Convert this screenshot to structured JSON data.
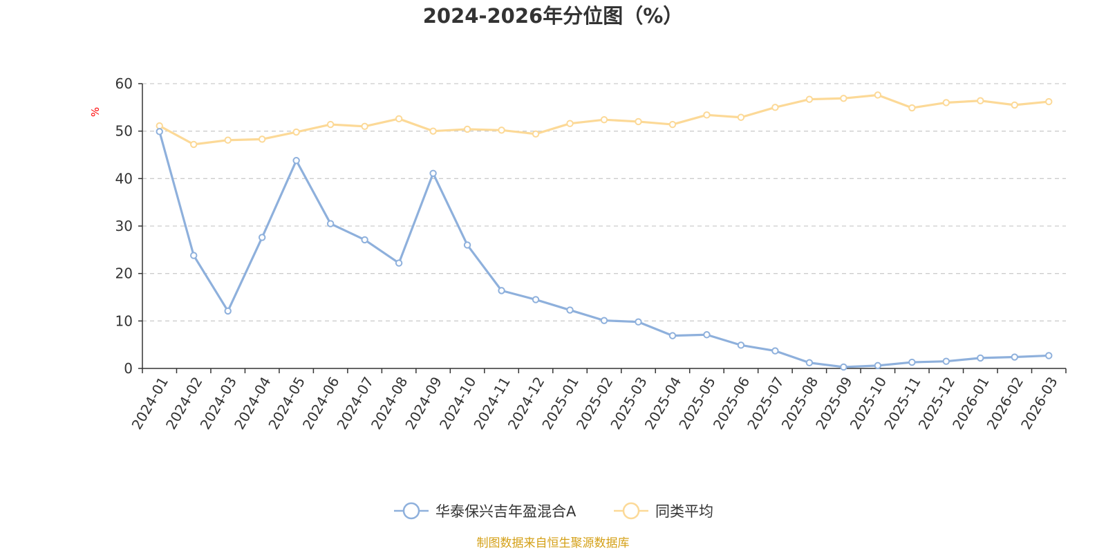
{
  "chart_data": {
    "type": "line",
    "title": "2024-2026年分位图（%）",
    "ylabel": "%",
    "xlabel": "",
    "ylim": [
      0,
      60
    ],
    "yticks": [
      0,
      10,
      20,
      30,
      40,
      50,
      60
    ],
    "grid": true,
    "legend_position": "bottom-center",
    "categories": [
      "2024-01",
      "2024-02",
      "2024-03",
      "2024-04",
      "2024-05",
      "2024-06",
      "2024-07",
      "2024-08",
      "2024-09",
      "2024-10",
      "2024-11",
      "2024-12",
      "2025-01",
      "2025-02",
      "2025-03",
      "2025-04",
      "2025-05",
      "2025-06",
      "2025-07",
      "2025-08",
      "2025-09",
      "2025-10",
      "2025-11",
      "2025-12",
      "2026-01",
      "2026-02",
      "2026-03"
    ],
    "series": [
      {
        "name": "华泰保兴吉年盈混合A",
        "color": "#8eb0dc",
        "values": [
          49.9,
          23.8,
          12.1,
          27.6,
          43.8,
          30.5,
          27.1,
          22.2,
          41.1,
          26.0,
          16.4,
          14.5,
          12.3,
          10.1,
          9.8,
          6.9,
          7.1,
          4.9,
          3.7,
          1.2,
          0.3,
          0.6,
          1.3,
          1.5,
          2.2,
          2.4,
          2.7
        ]
      },
      {
        "name": "同类平均",
        "color": "#fcd997",
        "values": [
          51.1,
          47.2,
          48.1,
          48.3,
          49.8,
          51.4,
          51.0,
          52.6,
          50.0,
          50.4,
          50.2,
          49.4,
          51.6,
          52.4,
          52.0,
          51.4,
          53.4,
          52.9,
          55.0,
          56.7,
          56.9,
          57.6,
          54.9,
          56.0,
          56.4,
          55.5,
          56.2
        ]
      }
    ],
    "source_note": "制图数据来自恒生聚源数据库",
    "source_color": "#d4a017"
  }
}
